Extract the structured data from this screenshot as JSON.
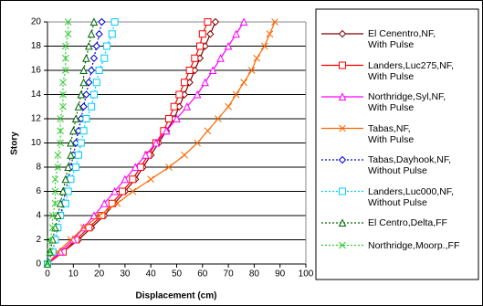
{
  "chart_data": {
    "type": "line",
    "x_label": "Displacement (cm)",
    "y_label": "Story",
    "xlim": [
      0,
      100
    ],
    "xticks": [
      0,
      10,
      20,
      30,
      40,
      50,
      60,
      70,
      80,
      90,
      100
    ],
    "ylim": [
      0,
      20
    ],
    "yticks": [
      0,
      2,
      4,
      6,
      8,
      10,
      12,
      14,
      16,
      18,
      20
    ],
    "grid": true,
    "legend": "right",
    "y": [
      0,
      1,
      2,
      3,
      4,
      5,
      6,
      7,
      8,
      9,
      10,
      11,
      12,
      13,
      14,
      15,
      16,
      17,
      18,
      19,
      20
    ],
    "series": [
      {
        "name": "El Cenentro,NF,\nWith Pulse",
        "color": "#800000",
        "marker": "diamond",
        "dashed": false,
        "x": [
          0,
          6,
          12,
          17,
          22,
          26,
          30,
          34,
          37,
          40,
          43,
          46,
          49,
          51,
          53,
          55,
          57,
          59,
          61,
          63,
          65
        ]
      },
      {
        "name": "Landers,Luc275,NF,\nWith Pulse",
        "color": "#ff0000",
        "marker": "square",
        "dashed": false,
        "x": [
          0,
          6,
          11,
          16,
          21,
          25,
          29,
          33,
          36,
          39,
          42,
          45,
          47,
          49,
          51,
          53,
          55,
          57,
          59,
          60,
          62
        ]
      },
      {
        "name": "Northridge,Syl,NF,\nWith Pulse",
        "color": "#ff00ff",
        "marker": "triangle",
        "dashed": false,
        "x": [
          0,
          5,
          10,
          14,
          18,
          22,
          26,
          30,
          34,
          38,
          42,
          46,
          50,
          54,
          58,
          61,
          64,
          67,
          70,
          73,
          76
        ]
      },
      {
        "name": "Tabas,NF,\nWith Pulse",
        "color": "#ff6600",
        "marker": "x",
        "dashed": false,
        "x": [
          0,
          4,
          9,
          14,
          20,
          27,
          33,
          40,
          47,
          53,
          58,
          62,
          66,
          70,
          73,
          76,
          79,
          81,
          84,
          86,
          88
        ]
      },
      {
        "name": "Tabas,Dayhook,NF,\nWithout Pulse",
        "color": "#0000cc",
        "marker": "diamond",
        "dashed": true,
        "x": [
          0,
          2,
          3,
          4,
          5,
          6,
          7,
          8,
          9,
          10,
          11,
          12,
          13,
          14,
          15,
          16,
          17,
          18,
          19,
          20,
          21
        ]
      },
      {
        "name": "Landers,Luc000,NF,\nWithout Pulse",
        "color": "#00ccff",
        "marker": "square",
        "dashed": true,
        "x": [
          0,
          2,
          3,
          4,
          5,
          7,
          8,
          9,
          11,
          12,
          13,
          14,
          15,
          17,
          18,
          19,
          20,
          22,
          23,
          25,
          26
        ]
      },
      {
        "name": "El Centro,Delta,FF",
        "color": "#006600",
        "marker": "triangle",
        "dashed": true,
        "x": [
          0,
          1,
          2,
          3,
          4,
          5,
          6,
          7,
          8,
          9,
          9,
          10,
          11,
          12,
          13,
          14,
          14,
          15,
          16,
          17,
          18
        ]
      },
      {
        "name": "Northridge,Moorp.,FF",
        "color": "#33cc33",
        "marker": "x",
        "dashed": true,
        "x": [
          0,
          1,
          1,
          2,
          2,
          3,
          3,
          3,
          4,
          4,
          5,
          5,
          5,
          6,
          6,
          6,
          7,
          7,
          7,
          8,
          8
        ]
      }
    ]
  }
}
